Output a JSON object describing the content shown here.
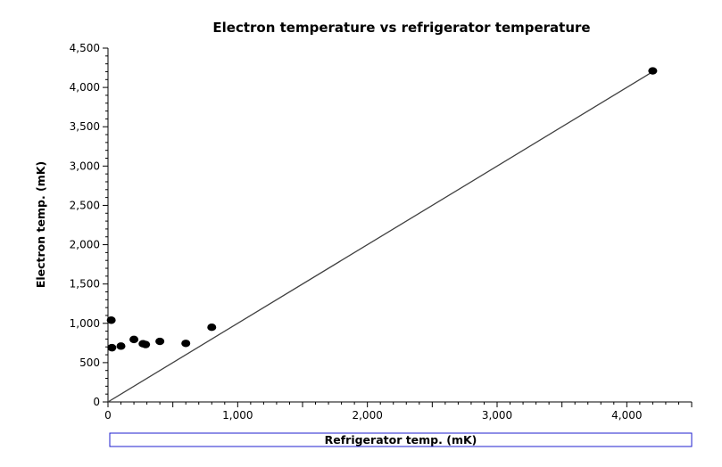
{
  "chart_data": {
    "type": "scatter",
    "title": "Electron temperature vs refrigerator temperature",
    "xlabel": "Refrigerator temp. (mK)",
    "ylabel": "Electron temp. (mK)",
    "xlim": [
      0,
      4500
    ],
    "ylim": [
      0,
      4500
    ],
    "x_ticks": [
      0,
      1000,
      2000,
      3000,
      4000
    ],
    "x_tick_labels": [
      "0",
      "1,000",
      "2,000",
      "3,000",
      "4,000"
    ],
    "y_ticks": [
      0,
      500,
      1000,
      1500,
      2000,
      2500,
      3000,
      3500,
      4000,
      4500
    ],
    "y_tick_labels": [
      "0",
      "500",
      "1,000",
      "1,500",
      "2,000",
      "2,500",
      "3,000",
      "3,500",
      "4,000",
      "4,500"
    ],
    "grid": false,
    "series": [
      {
        "type": "scatter",
        "x": [
          25,
          30,
          100,
          200,
          270,
          290,
          400,
          600,
          800,
          4200
        ],
        "y": [
          1040,
          690,
          710,
          795,
          740,
          730,
          770,
          745,
          950,
          4210
        ]
      },
      {
        "type": "line",
        "x": [
          0,
          4200
        ],
        "y": [
          0,
          4200
        ]
      }
    ],
    "colors": {
      "marker": "#000000",
      "line": "#404040",
      "xlabel_box": "#1f1fcf"
    }
  }
}
